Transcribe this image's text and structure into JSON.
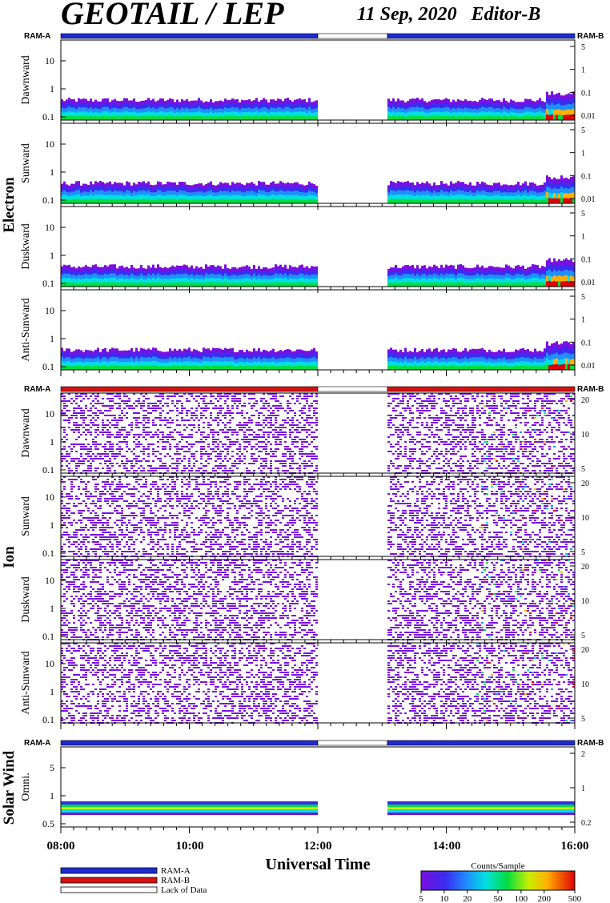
{
  "header": {
    "title": "GEOTAIL / LEP",
    "date_editor": "11 Sep, 2020   Editor-B"
  },
  "colors": {
    "ram_a": "#1f2bd0",
    "ram_b": "#d81010",
    "lack_of_data": "#ffffff"
  },
  "chart_data": {
    "type": "heatmap",
    "x_axis": {
      "label": "Universal Time",
      "range": [
        "08:00",
        "16:00"
      ],
      "ticks": [
        "08:00",
        "10:00",
        "12:00",
        "14:00",
        "16:00"
      ],
      "data_gap": [
        "12:00",
        "13:05"
      ]
    },
    "ram_bars": [
      {
        "left": "RAM-A",
        "right": "RAM-B",
        "mode_before_gap": "RAM-A",
        "mode_after_gap": "RAM-A"
      },
      {
        "left": "RAM-A",
        "right": "RAM-B",
        "mode_before_gap": "RAM-B",
        "mode_after_gap": "RAM-B"
      },
      {
        "left": "RAM-A",
        "right": "RAM-B",
        "mode_before_gap": "RAM-A",
        "mode_after_gap": "RAM-A"
      }
    ],
    "groups": [
      {
        "name": "Electron",
        "y_ticks_left": [
          "10",
          "1",
          "0.1"
        ],
        "y_ticks_right": [
          "5",
          "1",
          "0.1",
          "0.01"
        ],
        "panels": [
          "Dawnward",
          "Sunward",
          "Duskward",
          "Anti-Sunward"
        ]
      },
      {
        "name": "Ion",
        "y_ticks_left": [
          "10",
          "1",
          "0.1"
        ],
        "y_ticks_right": [
          "20",
          "10",
          "5"
        ],
        "panels": [
          "Dawnward",
          "Sunward",
          "Duskward",
          "Anti-Sunward"
        ]
      },
      {
        "name": "Solar Wind",
        "y_ticks_left": [
          "5",
          "1",
          "0.5"
        ],
        "y_ticks_right": [
          "2",
          "1",
          "0.2"
        ],
        "panels": [
          "Omni."
        ]
      }
    ],
    "colorbar": {
      "label": "Counts/Sample",
      "ticks": [
        "5",
        "10",
        "20",
        "50",
        "100",
        "200",
        "500"
      ],
      "range": [
        5,
        500
      ],
      "scale": "log"
    },
    "legend": [
      "RAM-A",
      "RAM-B",
      "Lack of Data"
    ]
  }
}
